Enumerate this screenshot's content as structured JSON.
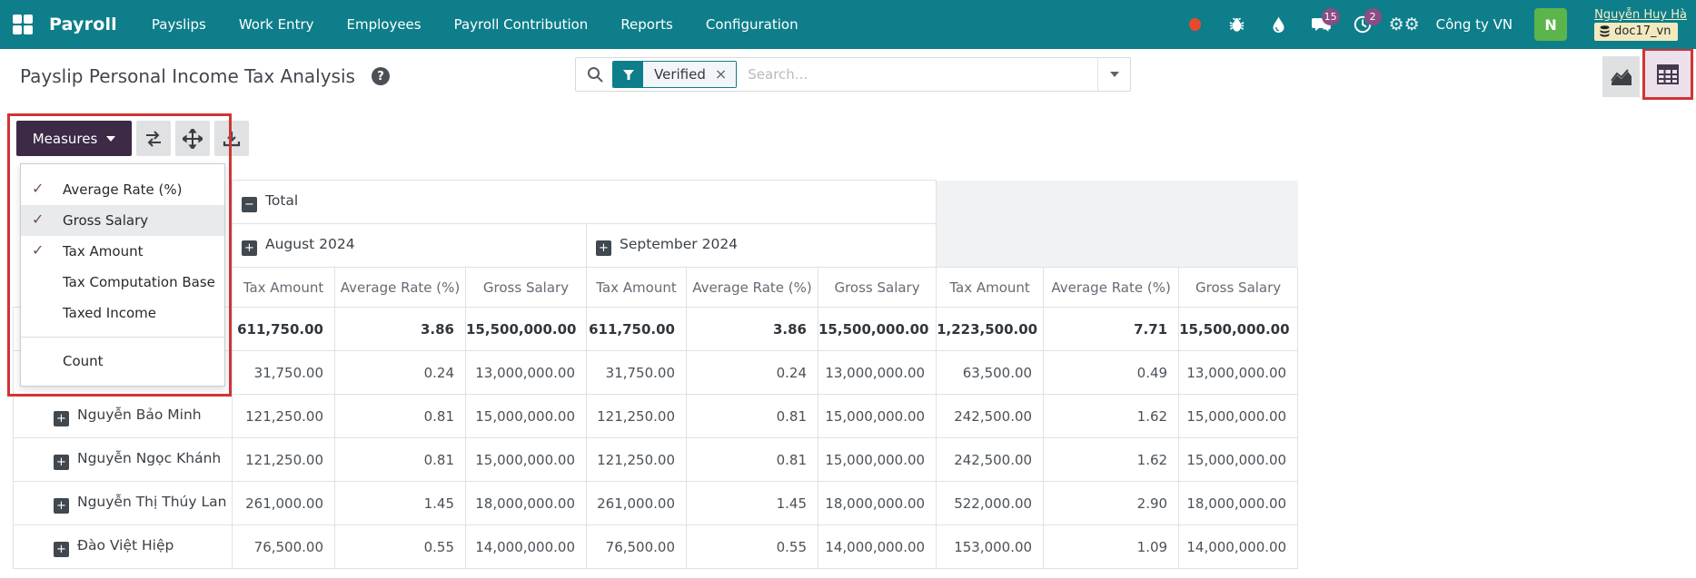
{
  "colors": {
    "navbar_teal": "#0d7e8a",
    "measures_button": "#3c2a46",
    "check_purple": "#714b67",
    "annotation_red": "#d13434",
    "badge_purple": "#8a4e84",
    "avatar_green": "#5bb54b",
    "active_view_bg": "#ece1eb"
  },
  "navbar": {
    "app_name": "Payroll",
    "menu_items": [
      "Payslips",
      "Work Entry",
      "Employees",
      "Payroll Contribution",
      "Reports",
      "Configuration"
    ],
    "icons": [
      "record-dot",
      "bug",
      "droplet",
      "messages",
      "activity",
      "settings"
    ],
    "message_badge": "15",
    "activity_badge": "2",
    "company": "Công ty VN",
    "avatar_initial": "N",
    "user_name": "Nguyễn Huy Hà",
    "database": "doc17_vn"
  },
  "control_panel": {
    "title": "Payslip Personal Income Tax Analysis",
    "help_glyph": "?",
    "search": {
      "facet": "Verified",
      "facet_close": "×",
      "placeholder": "Search..."
    }
  },
  "toolbar": {
    "measures_label": "Measures",
    "icon_buttons": [
      "flip-axis",
      "expand-all",
      "download"
    ]
  },
  "measures_menu": {
    "items": [
      {
        "label": "Average Rate (%)",
        "checked": true,
        "highlighted": false
      },
      {
        "label": "Gross Salary",
        "checked": true,
        "highlighted": true
      },
      {
        "label": "Tax Amount",
        "checked": true,
        "highlighted": false
      },
      {
        "label": "Tax Computation Base",
        "checked": false,
        "highlighted": false
      },
      {
        "label": "Taxed Income",
        "checked": false,
        "highlighted": false
      }
    ],
    "footer_item": "Count"
  },
  "pivot": {
    "top_header": "Total",
    "column_groups": [
      "August 2024",
      "September 2024"
    ],
    "measures": [
      "Tax Amount",
      "Average Rate (%)",
      "Gross Salary"
    ],
    "rows": [
      {
        "label": "",
        "bold": true,
        "values": [
          "611,750.00",
          "3.86",
          "15,500,000.00",
          "611,750.00",
          "3.86",
          "15,500,000.00",
          "1,223,500.00",
          "7.71",
          "15,500,000.00"
        ]
      },
      {
        "label": "",
        "bold": false,
        "values": [
          "31,750.00",
          "0.24",
          "13,000,000.00",
          "31,750.00",
          "0.24",
          "13,000,000.00",
          "63,500.00",
          "0.49",
          "13,000,000.00"
        ]
      },
      {
        "label": "Nguyễn Bảo Minh",
        "bold": false,
        "values": [
          "121,250.00",
          "0.81",
          "15,000,000.00",
          "121,250.00",
          "0.81",
          "15,000,000.00",
          "242,500.00",
          "1.62",
          "15,000,000.00"
        ]
      },
      {
        "label": "Nguyễn Ngọc Khánh",
        "bold": false,
        "values": [
          "121,250.00",
          "0.81",
          "15,000,000.00",
          "121,250.00",
          "0.81",
          "15,000,000.00",
          "242,500.00",
          "1.62",
          "15,000,000.00"
        ]
      },
      {
        "label": "Nguyễn Thị Thúy Lan",
        "bold": false,
        "values": [
          "261,000.00",
          "1.45",
          "18,000,000.00",
          "261,000.00",
          "1.45",
          "18,000,000.00",
          "522,000.00",
          "2.90",
          "18,000,000.00"
        ]
      },
      {
        "label": "Đào Việt Hiệp",
        "bold": false,
        "values": [
          "76,500.00",
          "0.55",
          "14,000,000.00",
          "76,500.00",
          "0.55",
          "14,000,000.00",
          "153,000.00",
          "1.09",
          "14,000,000.00"
        ]
      }
    ]
  }
}
